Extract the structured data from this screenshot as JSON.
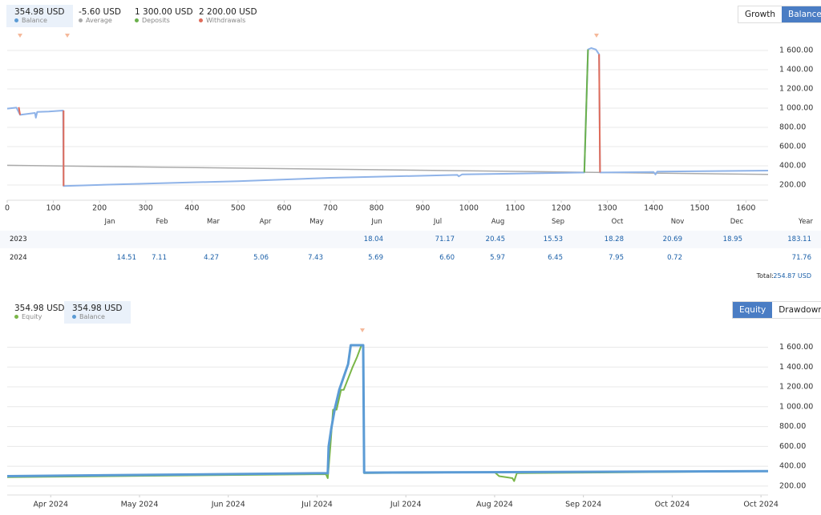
{
  "panels": [
    {
      "stats": [
        {
          "value": "354.98 USD",
          "label": "Balance",
          "color": "#5b9bd5"
        },
        {
          "value": "-5.60 USD",
          "label": "Average",
          "color": "#aaaaaa"
        },
        {
          "value": "1 300.00 USD",
          "label": "Deposits",
          "color": "#6ab04c"
        },
        {
          "value": "2 200.00 USD",
          "label": "Withdrawals",
          "color": "#e06c5a"
        }
      ],
      "selected_stat": 0,
      "buttons": [
        "Growth",
        "Balance"
      ],
      "active_button": 1
    },
    {
      "stats": [
        {
          "value": "354.98 USD",
          "label": "Equity",
          "color": "#7ab648"
        },
        {
          "value": "354.98 USD",
          "label": "Balance",
          "color": "#5b9bd5"
        }
      ],
      "selected_stat": 1,
      "buttons": [
        "Equity",
        "Drawdown"
      ],
      "active_button": 0
    }
  ],
  "chart_data": [
    {
      "type": "line",
      "grid": true,
      "xlim": [
        0,
        1648
      ],
      "xticks": [
        0,
        100,
        200,
        300,
        400,
        500,
        600,
        700,
        800,
        900,
        1000,
        1100,
        1200,
        1300,
        1400,
        1500,
        1600
      ],
      "ylim": [
        42,
        1800
      ],
      "yticks": [
        {
          "value": 200,
          "label": "200.00"
        },
        {
          "value": 400,
          "label": "400.00"
        },
        {
          "value": 600,
          "label": "600.00"
        },
        {
          "value": 800,
          "label": "800.00"
        },
        {
          "value": 1000,
          "label": "1 000.00"
        },
        {
          "value": 1200,
          "label": "1 200.00"
        },
        {
          "value": 1400,
          "label": "1 400.00"
        },
        {
          "value": 1600,
          "label": "1 600.00"
        }
      ],
      "series": [
        {
          "name": "Average",
          "color": "#aaaaaa",
          "width": 1.5,
          "x": [
            0,
            1648
          ],
          "values": [
            405,
            310
          ]
        },
        {
          "name": "Balance",
          "color": "#8fb3e8",
          "width": 2,
          "x": [
            0,
            20,
            28,
            60,
            62,
            65,
            90,
            121,
            122,
            300,
            500,
            700,
            975,
            978,
            985,
            1250,
            1258,
            1265,
            1275,
            1282,
            1284,
            1400,
            1404,
            1408,
            1648
          ],
          "values": [
            995,
            1005,
            930,
            950,
            900,
            960,
            965,
            975,
            190,
            215,
            240,
            275,
            305,
            290,
            310,
            330,
            1610,
            1625,
            1610,
            1560,
            330,
            335,
            310,
            340,
            350
          ]
        },
        {
          "name": "Deposits",
          "color": "#6ab04c",
          "width": 2,
          "x": [
            1250,
            1258
          ],
          "values": [
            330,
            1610
          ]
        },
        {
          "name": "Withdrawals",
          "color": "#e06c5a",
          "width": 2,
          "x": [
            25,
            28,
            null,
            122,
            122,
            null,
            1282,
            1284
          ],
          "values": [
            1010,
            930,
            null,
            975,
            190,
            null,
            1560,
            330
          ]
        }
      ]
    },
    {
      "type": "line",
      "grid": true,
      "xlim": [
        -0.49,
        8.08
      ],
      "xticks": [
        {
          "value": 0,
          "label": "Apr 2024"
        },
        {
          "value": 1,
          "label": "May 2024"
        },
        {
          "value": 2,
          "label": "Jun 2024"
        },
        {
          "value": 3,
          "label": "Jul 2024"
        },
        {
          "value": 4,
          "label": "Jul 2024"
        },
        {
          "value": 5,
          "label": "Aug 2024"
        },
        {
          "value": 6,
          "label": "Sep 2024"
        },
        {
          "value": 7,
          "label": "Oct 2024"
        },
        {
          "value": 8,
          "label": "Oct 2024"
        }
      ],
      "ylim": [
        110,
        1790
      ],
      "yticks": [
        {
          "value": 200,
          "label": "200.00"
        },
        {
          "value": 400,
          "label": "400.00"
        },
        {
          "value": 600,
          "label": "600.00"
        },
        {
          "value": 800,
          "label": "800.00"
        },
        {
          "value": 1000,
          "label": "1 000.00"
        },
        {
          "value": 1200,
          "label": "1 200.00"
        },
        {
          "value": 1400,
          "label": "1 400.00"
        },
        {
          "value": 1600,
          "label": "1 600.00"
        }
      ],
      "series": [
        {
          "name": "Equity",
          "color": "#7ab648",
          "width": 2,
          "x": [
            -0.49,
            3.1,
            3.12,
            3.15,
            3.18,
            3.22,
            3.27,
            3.3,
            3.4,
            3.45,
            3.5,
            3.52,
            3.53,
            5.0,
            5.05,
            5.2,
            5.22,
            5.25,
            8.08
          ],
          "values": [
            290,
            320,
            280,
            600,
            970,
            970,
            1170,
            1170,
            1400,
            1500,
            1620,
            1620,
            330,
            340,
            300,
            280,
            250,
            330,
            350
          ]
        },
        {
          "name": "Balance",
          "color": "#5b9bd5",
          "width": 3,
          "x": [
            -0.49,
            3.12,
            3.13,
            3.16,
            3.2,
            3.25,
            3.35,
            3.38,
            3.52,
            3.53,
            8.08
          ],
          "values": [
            300,
            330,
            600,
            780,
            980,
            1170,
            1430,
            1620,
            1620,
            335,
            350
          ]
        }
      ]
    }
  ],
  "table": {
    "columns": [
      "Jan",
      "Feb",
      "Mar",
      "Apr",
      "May",
      "Jun",
      "Jul",
      "Aug",
      "Sep",
      "Oct",
      "Nov",
      "Dec",
      "Year"
    ],
    "rows": [
      {
        "label": "2023",
        "cells": [
          null,
          null,
          null,
          null,
          null,
          "18.04",
          "71.17",
          "20.45",
          "15.53",
          "18.28",
          "20.69",
          "18.95",
          "183.11"
        ]
      },
      {
        "label": "2024",
        "cells": [
          "14.51",
          "7.11",
          "4.27",
          "5.06",
          "7.43",
          "5.69",
          "6.60",
          "5.97",
          "6.45",
          "7.95",
          "0.72",
          null,
          "71.76"
        ]
      }
    ],
    "total_label": "Total:",
    "total": "254.87 USD"
  }
}
